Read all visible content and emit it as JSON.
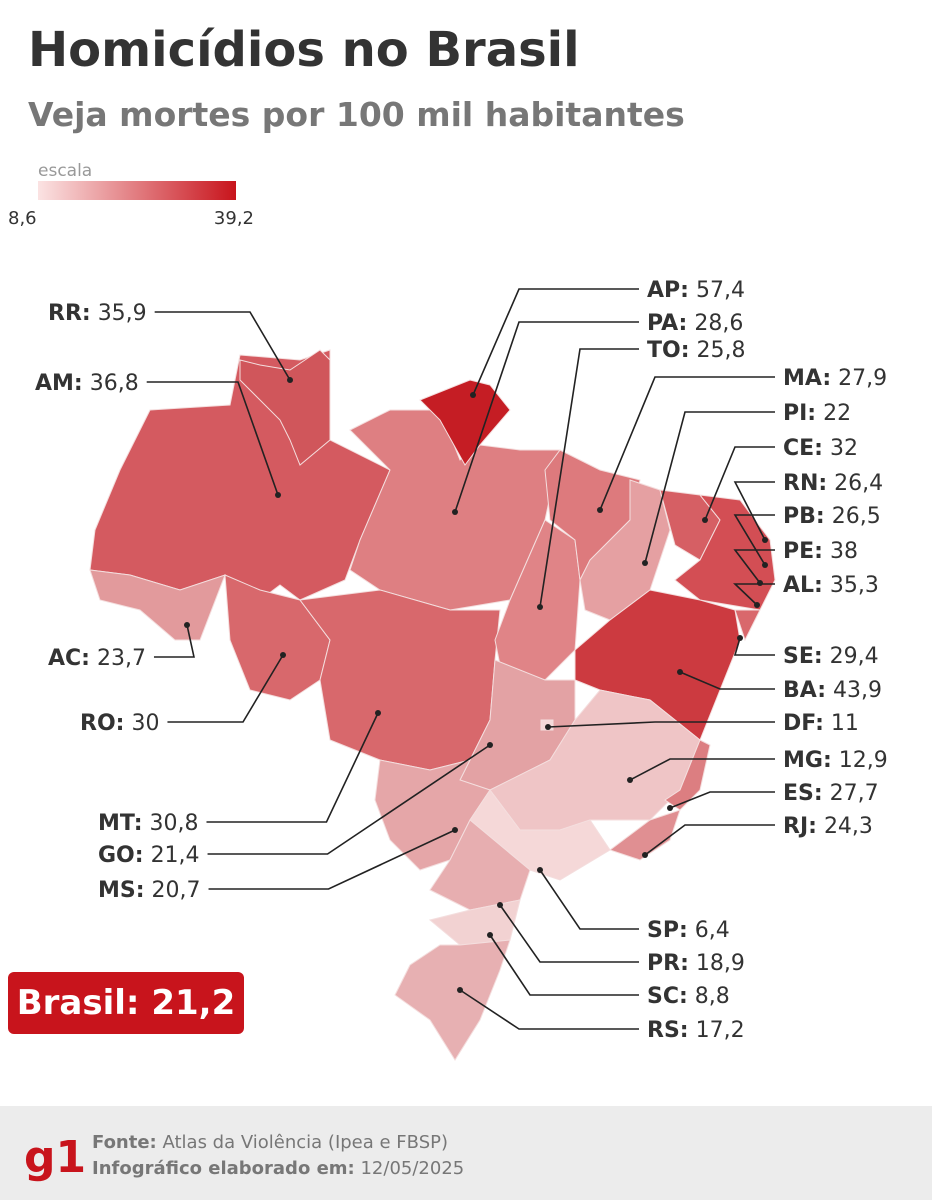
{
  "header": {
    "title": "Homicídios no Brasil",
    "subtitle": "Veja mortes por 100 mil habitantes"
  },
  "scale": {
    "label": "escala",
    "min": "8,6",
    "max": "39,2"
  },
  "states": [
    {
      "code": "RR:",
      "value": "35,9"
    },
    {
      "code": "AM:",
      "value": "36,8"
    },
    {
      "code": "AC:",
      "value": "23,7"
    },
    {
      "code": "RO:",
      "value": "30"
    },
    {
      "code": "MT:",
      "value": "30,8"
    },
    {
      "code": "GO:",
      "value": "21,4"
    },
    {
      "code": "MS:",
      "value": "20,7"
    },
    {
      "code": "AP:",
      "value": "57,4"
    },
    {
      "code": "PA:",
      "value": "28,6"
    },
    {
      "code": "TO:",
      "value": "25,8"
    },
    {
      "code": "MA:",
      "value": "27,9"
    },
    {
      "code": "PI:",
      "value": "22"
    },
    {
      "code": "CE:",
      "value": "32"
    },
    {
      "code": "RN:",
      "value": "26,4"
    },
    {
      "code": "PB:",
      "value": "26,5"
    },
    {
      "code": "PE:",
      "value": "38"
    },
    {
      "code": "AL:",
      "value": "35,3"
    },
    {
      "code": "SE:",
      "value": "29,4"
    },
    {
      "code": "BA:",
      "value": "43,9"
    },
    {
      "code": "DF:",
      "value": "11"
    },
    {
      "code": "MG:",
      "value": "12,9"
    },
    {
      "code": "ES:",
      "value": "27,7"
    },
    {
      "code": "RJ:",
      "value": "24,3"
    },
    {
      "code": "SP:",
      "value": "6,4"
    },
    {
      "code": "PR:",
      "value": "18,9"
    },
    {
      "code": "SC:",
      "value": "8,8"
    },
    {
      "code": "RS:",
      "value": "17,2"
    }
  ],
  "national": {
    "label": "Brasil:",
    "value": "21,2"
  },
  "footer": {
    "logo": "g1",
    "source_label": "Fonte:",
    "source": "Atlas da Violência (Ipea e FBSP)",
    "date_label": "Infográfico elaborado em:",
    "date": "12/05/2025"
  }
}
